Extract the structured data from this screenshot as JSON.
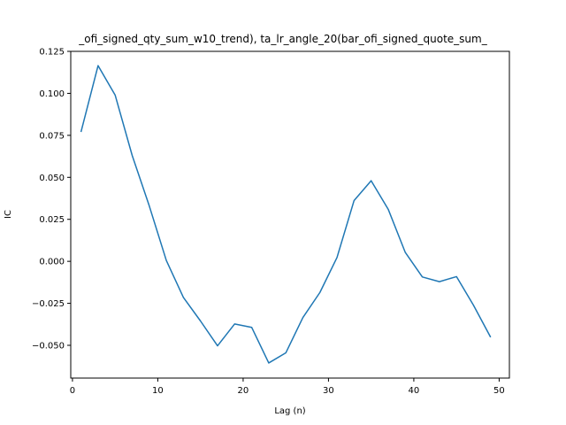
{
  "chart_data": {
    "type": "line",
    "title": "_ofi_signed_qty_sum_w10_trend), ta_lr_angle_20(bar_ofi_signed_quote_sum_",
    "xlabel": "Lag (n)",
    "ylabel": "IC",
    "xlim": [
      -0.2,
      51.2
    ],
    "ylim": [
      -0.0695,
      0.125
    ],
    "x_ticks": [
      0,
      10,
      20,
      30,
      40,
      50
    ],
    "x_tick_labels": [
      "0",
      "10",
      "20",
      "30",
      "40",
      "50"
    ],
    "y_ticks": [
      -0.05,
      -0.025,
      0.0,
      0.025,
      0.05,
      0.075,
      0.1,
      0.125
    ],
    "y_tick_labels": [
      "−0.050",
      "−0.025",
      "0.000",
      "0.025",
      "0.050",
      "0.075",
      "0.100",
      "0.125"
    ],
    "grid": false,
    "series": [
      {
        "color": "#1f77b4",
        "x": [
          1,
          3,
          5,
          7,
          9,
          11,
          13,
          15,
          17,
          19,
          21,
          23,
          25,
          27,
          29,
          31,
          33,
          35,
          37,
          39,
          41,
          43,
          45,
          47,
          49
        ],
        "values": [
          0.077,
          0.1165,
          0.099,
          0.063,
          0.033,
          0.0005,
          -0.0215,
          -0.0355,
          -0.0503,
          -0.0373,
          -0.0393,
          -0.0605,
          -0.0545,
          -0.0335,
          -0.0185,
          0.0023,
          0.0362,
          0.048,
          0.031,
          0.0053,
          -0.0093,
          -0.0121,
          -0.0091,
          -0.0262,
          -0.0452
        ]
      }
    ]
  }
}
